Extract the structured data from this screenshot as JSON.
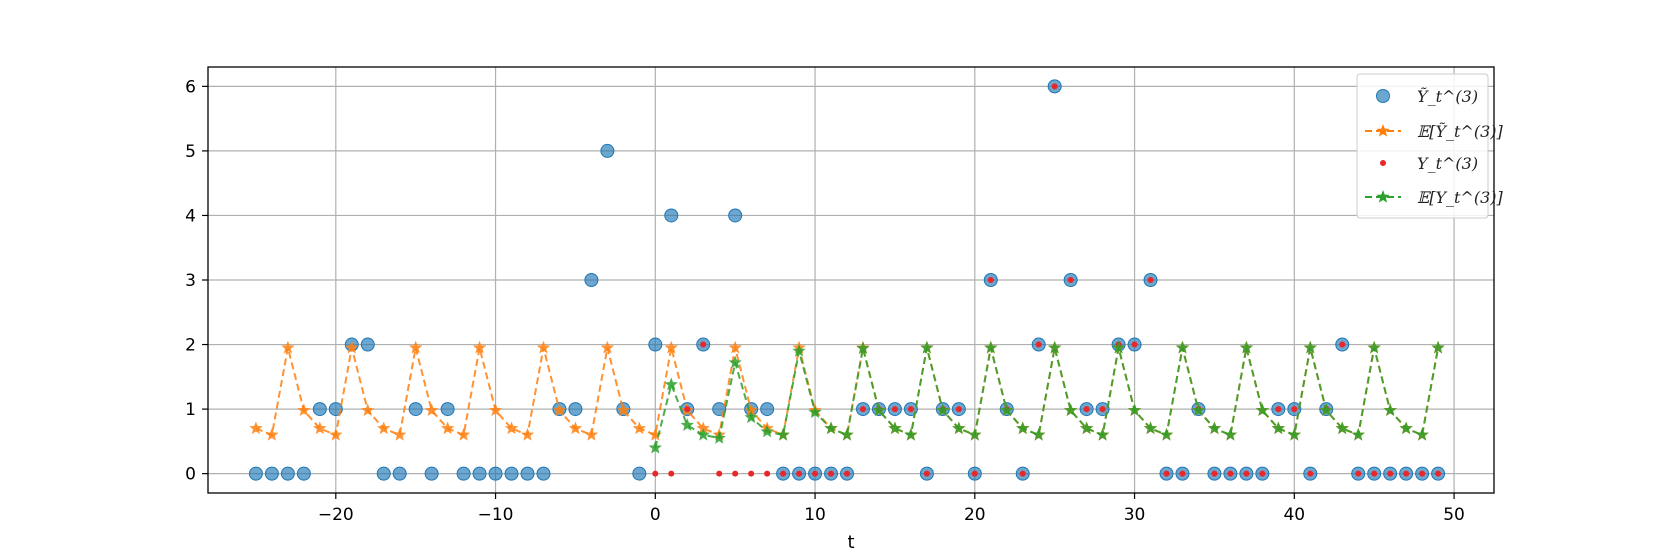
{
  "chart_data": {
    "type": "scatter",
    "xlabel": "t",
    "ylabel": "",
    "xlim": [
      -28,
      52.5
    ],
    "ylim": [
      -0.3,
      6.3
    ],
    "xticks": [
      -20,
      -10,
      0,
      10,
      20,
      30,
      40,
      50
    ],
    "yticks": [
      0,
      1,
      2,
      3,
      4,
      5,
      6
    ],
    "grid": true,
    "legend_position": "top-right",
    "series": [
      {
        "name": "Ỹ_t^(3)",
        "style": "scatter-circle",
        "color": "#1f77b4",
        "x": [
          -25,
          -24,
          -23,
          -22,
          -21,
          -20,
          -19,
          -18,
          -17,
          -16,
          -15,
          -14,
          -13,
          -12,
          -11,
          -10,
          -9,
          -8,
          -7,
          -6,
          -5,
          -4,
          -3,
          -2,
          -1,
          0,
          1,
          2,
          3,
          4,
          5,
          6,
          7,
          8,
          9,
          10,
          11,
          12,
          13,
          14,
          15,
          16,
          17,
          18,
          19,
          20,
          21,
          22,
          23,
          24,
          25,
          26,
          27,
          28,
          29,
          30,
          31,
          32,
          33,
          34,
          35,
          36,
          37,
          38,
          39,
          40,
          41,
          42,
          43,
          44,
          45,
          46,
          47,
          48,
          49
        ],
        "y": [
          0,
          0,
          0,
          0,
          1,
          1,
          2,
          2,
          0,
          0,
          1,
          0,
          1,
          0,
          0,
          0,
          0,
          0,
          0,
          1,
          1,
          3,
          5,
          1,
          0,
          2,
          4,
          1,
          2,
          1,
          4,
          1,
          1,
          0,
          0,
          0,
          0,
          0,
          1,
          1,
          1,
          1,
          0,
          1,
          1,
          0,
          3,
          1,
          0,
          2,
          6,
          3,
          1,
          1,
          2,
          2,
          3,
          0,
          0,
          1,
          0,
          0,
          0,
          0,
          1,
          1,
          0,
          1,
          2,
          0,
          0,
          0,
          0,
          0,
          0
        ]
      },
      {
        "name": "𝔼[Ỹ_t^(3)]",
        "style": "dashed-star",
        "color": "#ff7f0e",
        "x": [
          -25,
          -24,
          -23,
          -22,
          -21,
          -20,
          -19,
          -18,
          -17,
          -16,
          -15,
          -14,
          -13,
          -12,
          -11,
          -10,
          -9,
          -8,
          -7,
          -6,
          -5,
          -4,
          -3,
          -2,
          -1,
          0,
          1,
          2,
          3,
          4,
          5,
          6,
          7,
          8,
          9,
          10,
          11,
          12,
          13,
          14,
          15,
          16,
          17,
          18,
          19,
          20,
          21,
          22,
          23,
          24,
          25,
          26,
          27,
          28,
          29,
          30,
          31,
          32,
          33,
          34,
          35,
          36,
          37,
          38,
          39,
          40,
          41,
          42,
          43,
          44,
          45,
          46,
          47,
          48,
          49
        ],
        "y": [
          0.7,
          0.6,
          1.95,
          0.98,
          0.7,
          0.6,
          1.95,
          0.98,
          0.7,
          0.6,
          1.95,
          0.98,
          0.7,
          0.6,
          1.95,
          0.98,
          0.7,
          0.6,
          1.95,
          0.98,
          0.7,
          0.6,
          1.95,
          0.98,
          0.7,
          0.6,
          1.95,
          0.98,
          0.7,
          0.6,
          1.95,
          0.98,
          0.7,
          0.6,
          1.95,
          0.98,
          0.7,
          0.6,
          1.95,
          0.98,
          0.7,
          0.6,
          1.95,
          0.98,
          0.7,
          0.6,
          1.95,
          0.98,
          0.7,
          0.6,
          1.95,
          0.98,
          0.7,
          0.6,
          1.95,
          0.98,
          0.7,
          0.6,
          1.95,
          0.98,
          0.7,
          0.6,
          1.95,
          0.98,
          0.7,
          0.6,
          1.95,
          0.98,
          0.7,
          0.6,
          1.95,
          0.98,
          0.7,
          0.6,
          1.95
        ]
      },
      {
        "name": "Y_t^(3)",
        "style": "scatter-dot",
        "color": "#e8272b",
        "x": [
          0,
          1,
          2,
          3,
          4,
          5,
          6,
          7,
          8,
          9,
          10,
          11,
          12,
          13,
          14,
          15,
          16,
          17,
          18,
          19,
          20,
          21,
          22,
          23,
          24,
          25,
          26,
          27,
          28,
          29,
          30,
          31,
          32,
          33,
          34,
          35,
          36,
          37,
          38,
          39,
          40,
          41,
          42,
          43,
          44,
          45,
          46,
          47,
          48,
          49
        ],
        "y": [
          0,
          0,
          1,
          2,
          0,
          0,
          0,
          0,
          0,
          0,
          0,
          0,
          0,
          1,
          1,
          1,
          1,
          0,
          1,
          1,
          0,
          3,
          1,
          0,
          2,
          6,
          3,
          1,
          1,
          2,
          2,
          3,
          0,
          0,
          1,
          0,
          0,
          0,
          0,
          1,
          1,
          0,
          1,
          2,
          0,
          0,
          0,
          0,
          0,
          0
        ]
      },
      {
        "name": "𝔼[Y_t^(3)]",
        "style": "dashed-star",
        "color": "#2ca02c",
        "x": [
          0,
          1,
          2,
          3,
          4,
          5,
          6,
          7,
          8,
          9,
          10,
          11,
          12,
          13,
          14,
          15,
          16,
          17,
          18,
          19,
          20,
          21,
          22,
          23,
          24,
          25,
          26,
          27,
          28,
          29,
          30,
          31,
          32,
          33,
          34,
          35,
          36,
          37,
          38,
          39,
          40,
          41,
          42,
          43,
          44,
          45,
          46,
          47,
          48,
          49
        ],
        "y": [
          0.4,
          1.38,
          0.75,
          0.6,
          0.55,
          1.72,
          0.87,
          0.65,
          0.6,
          1.9,
          0.95,
          0.7,
          0.6,
          1.94,
          0.98,
          0.7,
          0.6,
          1.95,
          0.98,
          0.7,
          0.6,
          1.95,
          0.98,
          0.7,
          0.6,
          1.95,
          0.98,
          0.7,
          0.6,
          1.95,
          0.98,
          0.7,
          0.6,
          1.95,
          0.98,
          0.7,
          0.6,
          1.95,
          0.98,
          0.7,
          0.6,
          1.95,
          0.98,
          0.7,
          0.6,
          1.95,
          0.98,
          0.7,
          0.6,
          1.95
        ]
      }
    ]
  }
}
